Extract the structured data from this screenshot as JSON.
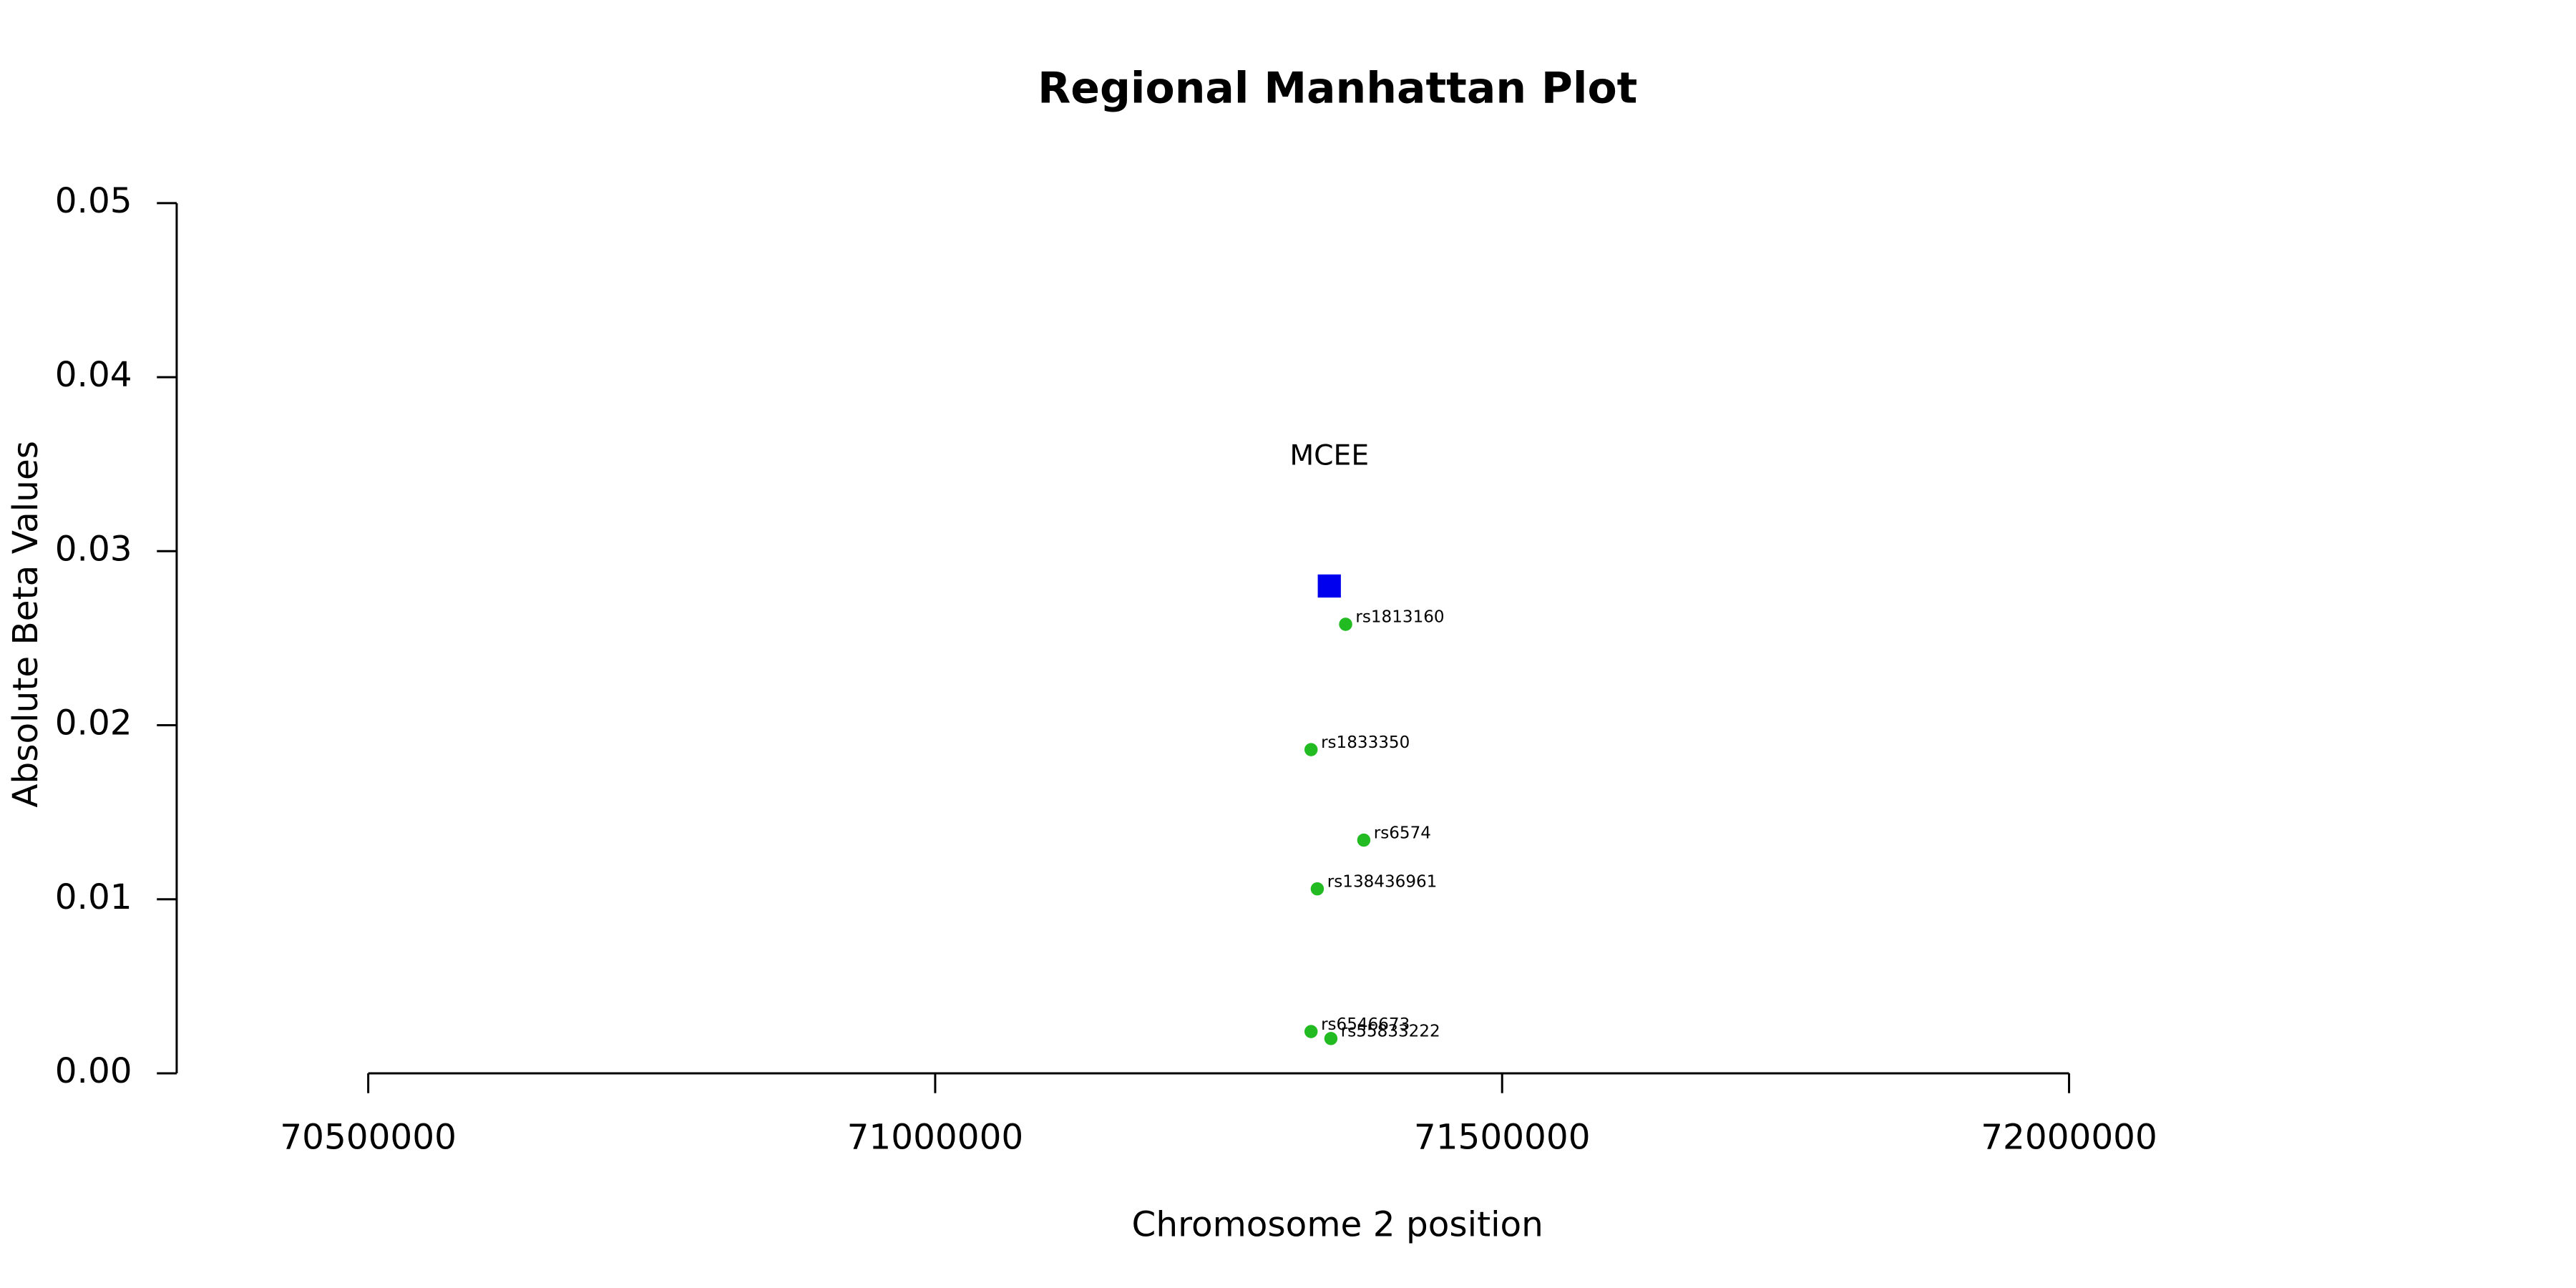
{
  "chart_data": {
    "type": "scatter",
    "title": "Regional Manhattan Plot",
    "x_label": "Chromosome 2 position",
    "y_label": "Absolute Beta Values",
    "xlim": [
      70500000,
      72000000
    ],
    "xticks": [
      70500000,
      71000000,
      71500000,
      72000000
    ],
    "ylim": [
      0,
      0.05
    ],
    "yticks": [
      {
        "value": 0,
        "label": "0.00"
      },
      {
        "value": 0.01,
        "label": "0.01"
      },
      {
        "value": 0.02,
        "label": "0.02"
      },
      {
        "value": 0.03,
        "label": "0.03"
      },
      {
        "value": 0.04,
        "label": "0.04"
      },
      {
        "value": 0.05,
        "label": "0.05"
      }
    ],
    "genes": {
      "color": "#0000ee",
      "names": [
        "MCEE"
      ],
      "x": [
        71347600
      ],
      "values": [
        0.028
      ]
    },
    "snps": {
      "color": "#22bb22",
      "names": [
        "rs1813160",
        "rs1833350",
        "rs6574",
        "rs138436961",
        "rs6546673",
        "rs55833222"
      ],
      "x": [
        71362000,
        71331500,
        71378000,
        71337000,
        71331500,
        71349000
      ],
      "values": [
        0.0258,
        0.0186,
        0.0134,
        0.0106,
        0.0024,
        0.002
      ]
    }
  }
}
